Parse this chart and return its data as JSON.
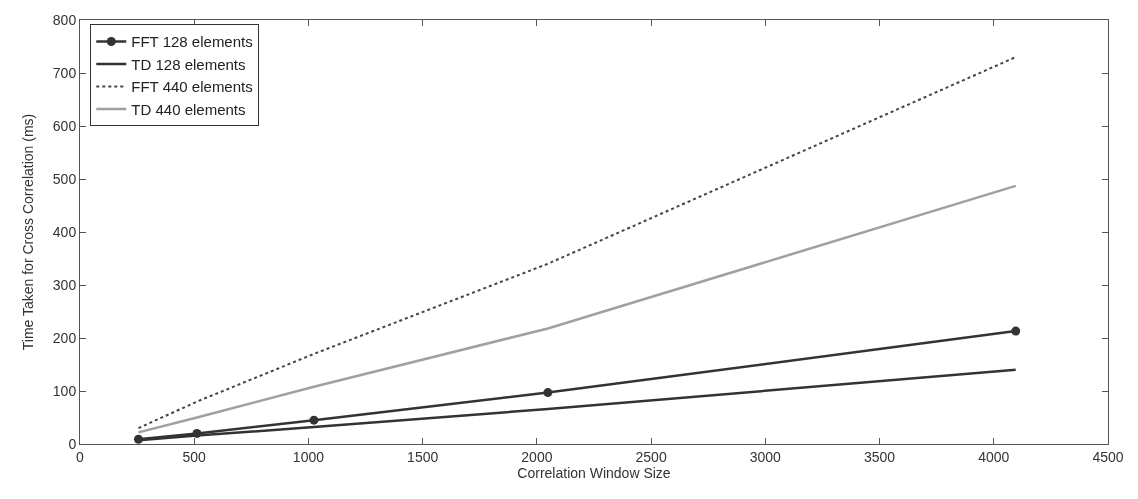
{
  "chart_data": {
    "type": "line",
    "xlabel": "Correlation Window Size",
    "ylabel": "Time Taken for Cross Correlation (ms)",
    "x": [
      256,
      512,
      1024,
      2048,
      4096
    ],
    "xlim": [
      0,
      4500
    ],
    "xticks": [
      0,
      500,
      1000,
      1500,
      2000,
      2500,
      3000,
      3500,
      4000,
      4500
    ],
    "ylim": [
      0,
      800
    ],
    "yticks": [
      0,
      100,
      200,
      300,
      400,
      500,
      600,
      700,
      800
    ],
    "legend": "top left",
    "series": [
      {
        "name": "FFT 128 elements",
        "color": "#333333",
        "marker": "circle",
        "line_style": "solid",
        "values": [
          9,
          20,
          45,
          97,
          213
        ]
      },
      {
        "name": "TD 128 elements",
        "color": "#333333",
        "marker": "none",
        "line_style": "solid",
        "values": [
          7,
          16,
          32,
          66,
          140
        ]
      },
      {
        "name": "FFT 440 elements",
        "color": "#444444",
        "marker": "none",
        "line_style": "dotted",
        "values": [
          30,
          80,
          170,
          340,
          730
        ]
      },
      {
        "name": "TD 440 elements",
        "color": "#a0a0a0",
        "marker": "none",
        "line_style": "solid",
        "values": [
          22,
          50,
          108,
          218,
          487
        ]
      }
    ]
  }
}
